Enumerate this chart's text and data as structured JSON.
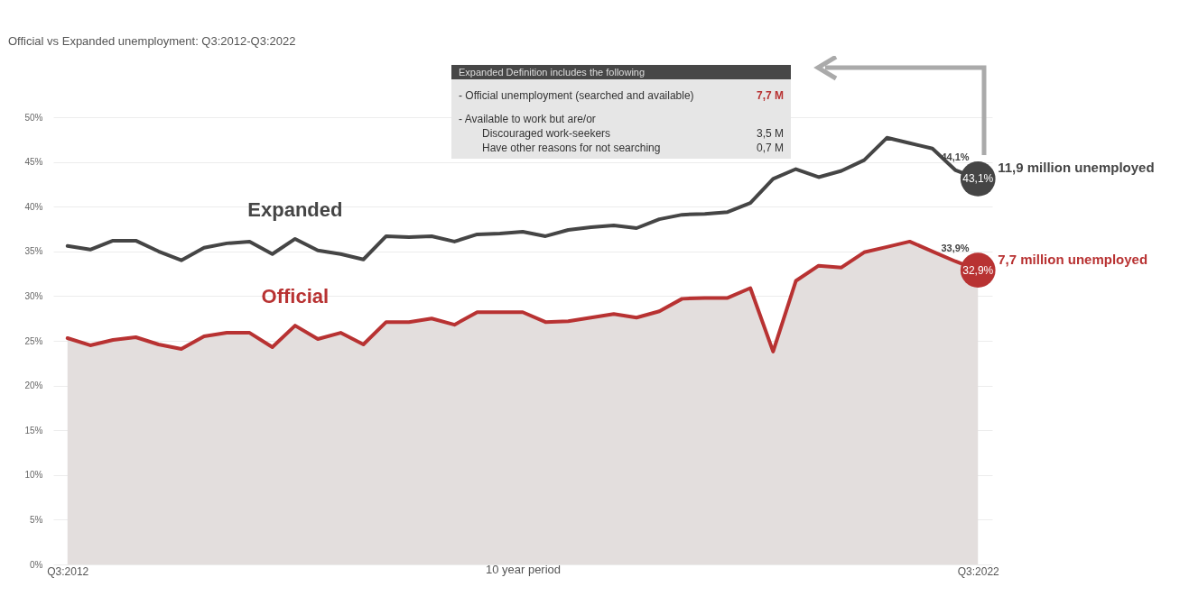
{
  "chart_data": {
    "type": "line",
    "title": "Official vs Expanded unemployment: Q3:2012-Q3:2022",
    "xlabel": "10 year period",
    "categories": [
      "Q3:2012",
      null,
      null,
      null,
      null,
      null,
      null,
      null,
      null,
      null,
      null,
      null,
      null,
      null,
      null,
      null,
      null,
      null,
      null,
      null,
      null,
      null,
      null,
      null,
      null,
      null,
      null,
      null,
      null,
      null,
      null,
      null,
      null,
      null,
      null,
      null,
      null,
      null,
      null,
      null,
      "Q3:2022"
    ],
    "series": [
      {
        "name": "Expanded",
        "color": "#454545",
        "values": [
          35.6,
          35.2,
          36.2,
          36.2,
          35.0,
          34.0,
          35.4,
          35.9,
          36.1,
          34.7,
          36.4,
          35.1,
          34.7,
          34.1,
          36.7,
          36.6,
          36.7,
          36.1,
          36.9,
          37.0,
          37.2,
          36.7,
          37.4,
          37.7,
          37.9,
          37.6,
          38.6,
          39.1,
          39.2,
          39.4,
          40.4,
          43.1,
          44.2,
          43.3,
          44.0,
          45.2,
          47.7,
          47.1,
          46.5,
          44.1,
          43.1
        ],
        "value_labels": [
          null,
          null,
          null,
          null,
          null,
          null,
          null,
          null,
          null,
          null,
          null,
          null,
          null,
          null,
          null,
          null,
          null,
          null,
          null,
          null,
          null,
          null,
          null,
          null,
          null,
          null,
          null,
          null,
          null,
          null,
          null,
          null,
          null,
          null,
          null,
          null,
          null,
          null,
          null,
          "44,1%",
          "43,1%"
        ]
      },
      {
        "name": "Official",
        "type": "area",
        "color": "#b83232",
        "values": [
          25.3,
          24.5,
          25.1,
          25.4,
          24.6,
          24.1,
          25.5,
          25.9,
          25.9,
          24.3,
          26.7,
          25.2,
          25.9,
          24.6,
          27.1,
          27.1,
          27.5,
          26.8,
          28.2,
          28.2,
          28.2,
          27.1,
          27.2,
          27.6,
          28.0,
          27.6,
          28.3,
          29.7,
          29.8,
          29.8,
          30.9,
          23.8,
          31.7,
          33.4,
          33.2,
          34.9,
          35.5,
          36.1,
          35.0,
          33.9,
          32.9
        ],
        "value_labels": [
          null,
          null,
          null,
          null,
          null,
          null,
          null,
          null,
          null,
          null,
          null,
          null,
          null,
          null,
          null,
          null,
          null,
          null,
          null,
          null,
          null,
          null,
          null,
          null,
          null,
          null,
          null,
          null,
          null,
          null,
          null,
          null,
          null,
          null,
          null,
          null,
          null,
          null,
          null,
          "33,9%",
          "32,9%"
        ]
      }
    ],
    "ylim": [
      0,
      50
    ],
    "yticks": [
      {
        "value": 0,
        "label": "0%"
      },
      {
        "value": 5,
        "label": "5%"
      },
      {
        "value": 10,
        "label": "10%"
      },
      {
        "value": 15,
        "label": "15%"
      },
      {
        "value": 20,
        "label": "20%"
      },
      {
        "value": 25,
        "label": "25%"
      },
      {
        "value": 30,
        "label": "30%"
      },
      {
        "value": 35,
        "label": "35%"
      },
      {
        "value": 40,
        "label": "40%"
      },
      {
        "value": 45,
        "label": "45%"
      },
      {
        "value": 50,
        "label": "50%"
      }
    ],
    "grid": "y",
    "annotations": [
      "Expanded Definition includes the following",
      "- Official unemployment (searched and available)",
      "7,7 M",
      "- Available to work but are/or",
      "Discouraged work-seekers",
      "3,5 M",
      "Have other reasons for not searching",
      "0,7 M",
      {
        "text": "11,9 million unemployed",
        "x": "Q3:2022",
        "y": 43.1
      },
      {
        "text": "7,7 million unemployed",
        "x": "Q3:2022",
        "y": 32.9
      }
    ]
  }
}
